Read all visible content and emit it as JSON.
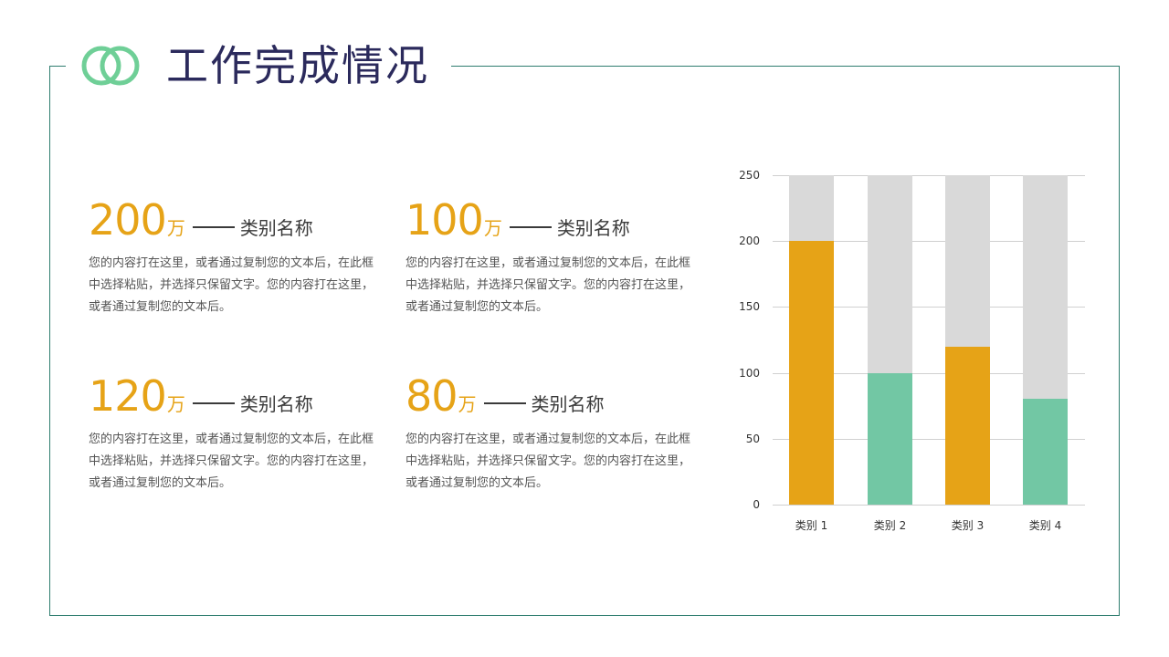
{
  "header": {
    "title": "工作完成情况",
    "logo_icon": "double-ring-icon",
    "logo_color": "#6fcf97",
    "title_color": "#2b2a5c",
    "frame_color": "#2f7d6f"
  },
  "stats": [
    {
      "value": "200",
      "unit": "万",
      "label": "类别名称",
      "body": "您的内容打在这里，或者通过复制您的文本后，在此框中选择粘贴，并选择只保留文字。您的内容打在这里，或者通过复制您的文本后。"
    },
    {
      "value": "100",
      "unit": "万",
      "label": "类别名称",
      "body": "您的内容打在这里，或者通过复制您的文本后，在此框中选择粘贴，并选择只保留文字。您的内容打在这里，或者通过复制您的文本后。"
    },
    {
      "value": "120",
      "unit": "万",
      "label": "类别名称",
      "body": "您的内容打在这里，或者通过复制您的文本后，在此框中选择粘贴，并选择只保留文字。您的内容打在这里，或者通过复制您的文本后。"
    },
    {
      "value": "80",
      "unit": "万",
      "label": "类别名称",
      "body": "您的内容打在这里，或者通过复制您的文本后，在此框中选择粘贴，并选择只保留文字。您的内容打在这里，或者通过复制您的文本后。"
    }
  ],
  "colors": {
    "accent": "#e6a317",
    "green": "#72c7a4",
    "track": "#d9d9d9"
  },
  "chart_data": {
    "type": "bar",
    "title": "",
    "xlabel": "",
    "ylabel": "",
    "categories": [
      "类别 1",
      "类别 2",
      "类别 3",
      "类别 4"
    ],
    "series": [
      {
        "name": "value",
        "values": [
          200,
          100,
          120,
          80
        ],
        "colors": [
          "#e6a317",
          "#72c7a4",
          "#e6a317",
          "#72c7a4"
        ]
      },
      {
        "name": "background",
        "values": [
          250,
          250,
          250,
          250
        ],
        "color": "#d9d9d9"
      }
    ],
    "yticks": [
      "250",
      "200",
      "150",
      "100",
      "50",
      "0"
    ],
    "ylim": [
      0,
      250
    ],
    "grid": true,
    "legend": "none"
  }
}
